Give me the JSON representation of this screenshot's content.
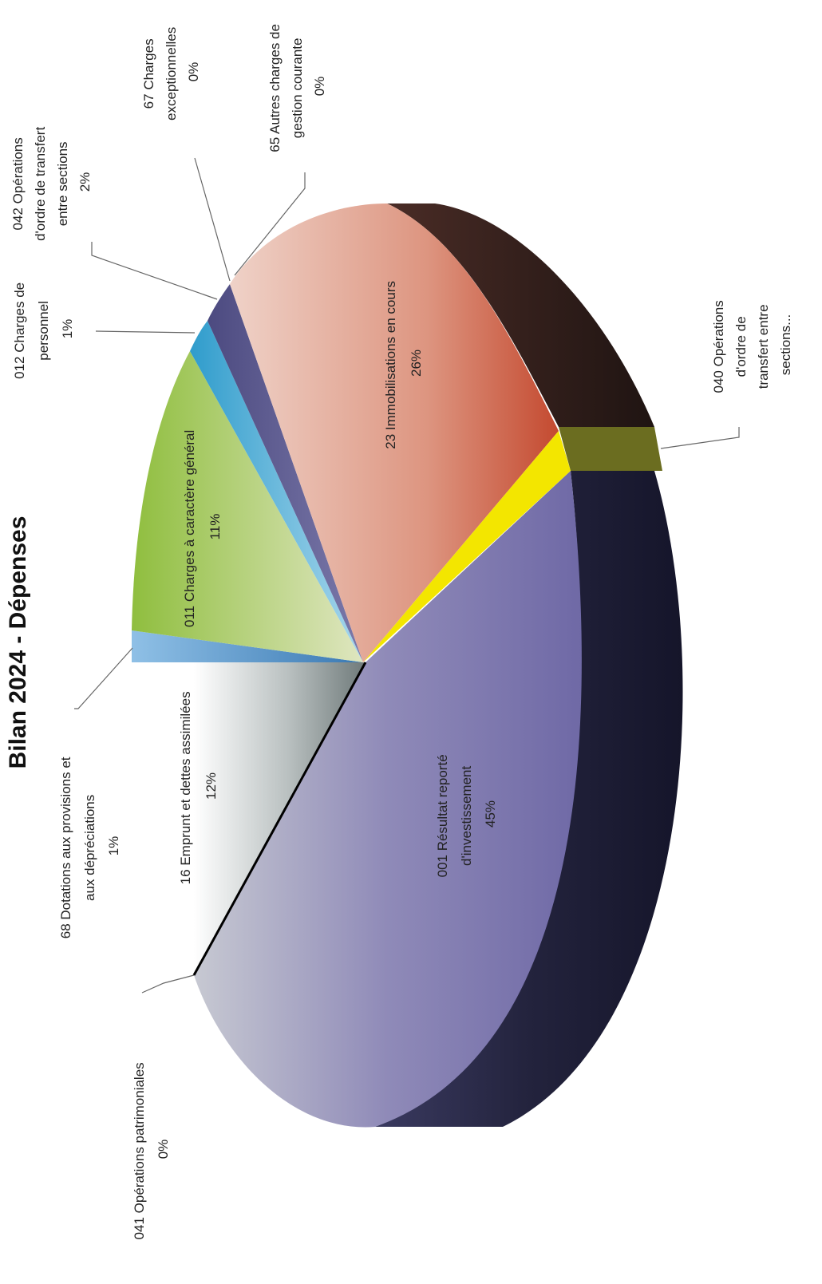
{
  "chart_data": {
    "type": "pie",
    "title": "Bilan 2024 - Dépenses",
    "style": "3d-exploded",
    "slices": [
      {
        "code": "001",
        "lines": [
          "001 Résultat reporté",
          "d'investissement",
          "45%"
        ],
        "value": 45,
        "color": "#7f7ab0"
      },
      {
        "code": "16",
        "lines": [
          "16 Emprunt et dettes assimilées",
          "12%"
        ],
        "value": 12,
        "color": "#b7bdbd"
      },
      {
        "code": "68",
        "lines": [
          "68 Dotations aux provisions et",
          "aux dépréciations",
          "1%"
        ],
        "value": 1,
        "color": "#6ea8d4"
      },
      {
        "code": "011",
        "lines": [
          "011 Charges à caractère général",
          "11%"
        ],
        "value": 11,
        "color": "#a6c95a"
      },
      {
        "code": "012",
        "lines": [
          "012 Charges de",
          "personnel",
          "1%"
        ],
        "value": 1,
        "color": "#4aa5cf"
      },
      {
        "code": "042",
        "lines": [
          "042 Opérations",
          "d'ordre de transfert",
          "entre sections",
          "2%"
        ],
        "value": 2,
        "color": "#5c5a8e"
      },
      {
        "code": "67",
        "lines": [
          "67 Charges",
          "exceptionnelles",
          "0%"
        ],
        "value": 0,
        "color": "#8a8a8a"
      },
      {
        "code": "65",
        "lines": [
          "65 Autres charges de",
          "gestion courante",
          "0%"
        ],
        "value": 0,
        "color": "#777777"
      },
      {
        "code": "23",
        "lines": [
          "23 Immobilisations en cours",
          "26%"
        ],
        "value": 26,
        "color": "#d8927c"
      },
      {
        "code": "040",
        "lines": [
          "040 Opérations",
          "d'ordre de",
          "transfert entre",
          "sections..."
        ],
        "value": 1,
        "color": "#f2e600"
      },
      {
        "code": "041",
        "lines": [
          "041 Opérations patrimoniales",
          "0%"
        ],
        "value": 0,
        "color": "#222222"
      }
    ]
  }
}
